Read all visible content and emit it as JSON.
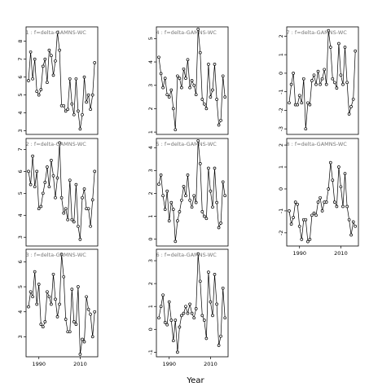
{
  "figure": {
    "xlabel": "Year",
    "xticks": [
      1990,
      2010
    ]
  },
  "chart_data": [
    {
      "type": "line",
      "panel": 1,
      "title_visible": "=1 : f=delta-GAMNS-WC",
      "ylim": [
        2.8,
        8.8
      ],
      "yticks": [
        3,
        4,
        5,
        6,
        7,
        8
      ],
      "x": [
        1985,
        1986,
        1987,
        1988,
        1989,
        1990,
        1991,
        1992,
        1993,
        1994,
        1995,
        1996,
        1997,
        1998,
        1999,
        2000,
        2001,
        2002,
        2003,
        2004,
        2005,
        2006,
        2007,
        2008,
        2009,
        2010,
        2011,
        2012,
        2013,
        2014,
        2015,
        2016,
        2017
      ],
      "y": [
        5.8,
        7.4,
        5.9,
        7.0,
        5.2,
        5.0,
        5.3,
        6.6,
        7.0,
        5.7,
        7.5,
        7.2,
        6.1,
        6.9,
        8.5,
        7.5,
        4.4,
        4.4,
        4.1,
        4.2,
        5.9,
        4.5,
        3.9,
        5.9,
        4.1,
        3.1,
        3.9,
        6.0,
        4.6,
        5.0,
        4.2,
        5.0,
        6.8
      ]
    },
    {
      "type": "line",
      "panel": 2,
      "title_visible": "=2 : f=delta-GAMNS-WC",
      "ylim": [
        2.6,
        7.5
      ],
      "yticks": [
        3,
        4,
        5,
        6,
        7
      ],
      "x": [
        1985,
        1986,
        1987,
        1988,
        1989,
        1990,
        1991,
        1992,
        1993,
        1994,
        1995,
        1996,
        1997,
        1998,
        1999,
        2000,
        2001,
        2002,
        2003,
        2004,
        2005,
        2006,
        2007,
        2008,
        2009,
        2010,
        2011,
        2012,
        2013,
        2014,
        2015,
        2016,
        2017
      ],
      "y": [
        6.0,
        5.4,
        6.7,
        5.3,
        6.0,
        4.3,
        4.4,
        5.0,
        5.5,
        6.2,
        5.3,
        6.5,
        5.8,
        4.8,
        5.7,
        7.3,
        4.8,
        4.1,
        4.3,
        3.8,
        5.6,
        3.8,
        3.7,
        5.4,
        3.5,
        2.9,
        4.8,
        5.2,
        4.3,
        4.3,
        3.5,
        4.7,
        6.0
      ]
    },
    {
      "type": "line",
      "panel": 3,
      "title_visible": "=3 : f=delta-GAMNS-WC",
      "ylim": [
        2.2,
        6.5
      ],
      "yticks": [
        3,
        4,
        5,
        6
      ],
      "x": [
        1985,
        1986,
        1987,
        1988,
        1989,
        1990,
        1991,
        1992,
        1993,
        1994,
        1995,
        1996,
        1997,
        1998,
        1999,
        2000,
        2001,
        2002,
        2003,
        2004,
        2005,
        2006,
        2007,
        2008,
        2009,
        2010,
        2011,
        2012,
        2013,
        2014,
        2015,
        2016,
        2017
      ],
      "y": [
        4.2,
        4.8,
        4.6,
        5.6,
        4.3,
        5.1,
        3.5,
        3.4,
        3.6,
        4.8,
        4.6,
        4.3,
        5.5,
        4.5,
        3.8,
        4.3,
        6.3,
        5.4,
        3.7,
        3.2,
        3.2,
        4.9,
        3.6,
        3.5,
        5.0,
        2.3,
        2.9,
        2.8,
        4.6,
        4.1,
        3.9,
        3.0,
        4.0
      ]
    },
    {
      "type": "line",
      "panel": 4,
      "title_visible": "=4 : f=delta-GAMNS-WC",
      "ylim": [
        0.9,
        5.5
      ],
      "yticks": [
        1,
        2,
        3,
        4,
        5
      ],
      "x": [
        1985,
        1986,
        1987,
        1988,
        1989,
        1990,
        1991,
        1992,
        1993,
        1994,
        1995,
        1996,
        1997,
        1998,
        1999,
        2000,
        2001,
        2002,
        2003,
        2004,
        2005,
        2006,
        2007,
        2008,
        2009,
        2010,
        2011,
        2012,
        2013,
        2014,
        2015,
        2016,
        2017
      ],
      "y": [
        4.2,
        3.5,
        2.9,
        3.3,
        2.6,
        2.5,
        2.8,
        2.0,
        1.1,
        3.4,
        3.3,
        2.9,
        3.7,
        3.3,
        4.1,
        2.9,
        3.2,
        3.0,
        2.6,
        5.4,
        4.4,
        2.4,
        2.2,
        2.0,
        3.9,
        2.5,
        2.8,
        3.9,
        2.4,
        1.3,
        1.5,
        3.4,
        2.5
      ]
    },
    {
      "type": "line",
      "panel": 5,
      "title_visible": "=5 : f=delta-GAMNS-WC",
      "ylim": [
        -0.3,
        4.4
      ],
      "yticks": [
        0,
        1,
        2,
        3,
        4
      ],
      "x": [
        1985,
        1986,
        1987,
        1988,
        1989,
        1990,
        1991,
        1992,
        1993,
        1994,
        1995,
        1996,
        1997,
        1998,
        1999,
        2000,
        2001,
        2002,
        2003,
        2004,
        2005,
        2006,
        2007,
        2008,
        2009,
        2010,
        2011,
        2012,
        2013,
        2014,
        2015,
        2016,
        2017
      ],
      "y": [
        2.4,
        2.8,
        1.9,
        1.3,
        2.1,
        0.8,
        1.6,
        1.3,
        -0.1,
        0.8,
        1.2,
        1.7,
        2.3,
        1.9,
        2.8,
        1.7,
        1.4,
        1.9,
        1.6,
        4.3,
        3.3,
        1.2,
        1.0,
        0.9,
        3.1,
        2.1,
        1.4,
        3.1,
        1.6,
        0.5,
        0.7,
        2.5,
        1.9
      ]
    },
    {
      "type": "line",
      "panel": 6,
      "title_visible": "=6 : f=delta-GAMNS-WC",
      "ylim": [
        -1.2,
        3.5
      ],
      "yticks": [
        -1,
        0,
        1,
        2,
        3
      ],
      "x": [
        1985,
        1986,
        1987,
        1988,
        1989,
        1990,
        1991,
        1992,
        1993,
        1994,
        1995,
        1996,
        1997,
        1998,
        1999,
        2000,
        2001,
        2002,
        2003,
        2004,
        2005,
        2006,
        2007,
        2008,
        2009,
        2010,
        2011,
        2012,
        2013,
        2014,
        2015,
        2016,
        2017
      ],
      "y": [
        0.5,
        1.0,
        1.5,
        0.3,
        0.2,
        1.2,
        0.4,
        -0.5,
        0.4,
        -1.0,
        0.1,
        0.6,
        0.7,
        1.0,
        0.7,
        1.1,
        0.7,
        0.5,
        0.9,
        3.3,
        2.1,
        0.6,
        0.4,
        -0.4,
        2.5,
        1.2,
        0.6,
        2.4,
        1.1,
        -0.7,
        -0.3,
        1.8,
        0.5
      ]
    },
    {
      "type": "line",
      "panel": 7,
      "title_visible": "=7 : f=delta-GAMNS-WC",
      "ylim": [
        -3.3,
        2.5
      ],
      "yticks": [
        -3,
        -2,
        -1,
        0,
        1,
        2
      ],
      "x": [
        1985,
        1986,
        1987,
        1988,
        1989,
        1990,
        1991,
        1992,
        1993,
        1994,
        1995,
        1996,
        1997,
        1998,
        1999,
        2000,
        2001,
        2002,
        2003,
        2004,
        2005,
        2006,
        2007,
        2008,
        2009,
        2010,
        2011,
        2012,
        2013,
        2014,
        2015,
        2016,
        2017
      ],
      "y": [
        -1.6,
        -0.6,
        0.0,
        -1.7,
        -1.7,
        -1.2,
        -1.6,
        -0.3,
        -3.0,
        -1.6,
        -1.7,
        -0.4,
        -0.1,
        -0.6,
        0.1,
        -0.6,
        -0.3,
        0.2,
        -0.6,
        2.3,
        1.4,
        -0.3,
        -0.5,
        -0.8,
        1.6,
        -0.1,
        -0.6,
        1.4,
        -0.5,
        -2.2,
        -1.8,
        -1.4,
        1.2
      ]
    },
    {
      "type": "line",
      "panel": 8,
      "title_visible": "=8 : f=delta-GAMNS-WC",
      "ylim": [
        -2.6,
        2.3
      ],
      "yticks": [
        -2,
        -1,
        0,
        1,
        2
      ],
      "x": [
        1985,
        1986,
        1987,
        1988,
        1989,
        1990,
        1991,
        1992,
        1993,
        1994,
        1995,
        1996,
        1997,
        1998,
        1999,
        2000,
        2001,
        2002,
        2003,
        2004,
        2005,
        2006,
        2007,
        2008,
        2009,
        2010,
        2011,
        2012,
        2013,
        2014,
        2015,
        2016,
        2017
      ],
      "y": [
        -1.0,
        -1.6,
        -1.3,
        -0.6,
        -0.7,
        -1.7,
        -2.3,
        -1.4,
        -1.4,
        -2.4,
        -2.3,
        -1.2,
        -1.1,
        -1.2,
        -0.6,
        -0.4,
        -1.0,
        -0.6,
        -0.6,
        0.0,
        1.2,
        0.4,
        -0.6,
        -0.8,
        1.0,
        0.1,
        -0.8,
        0.7,
        -0.8,
        -1.4,
        -2.1,
        -1.5,
        -1.7
      ]
    }
  ]
}
